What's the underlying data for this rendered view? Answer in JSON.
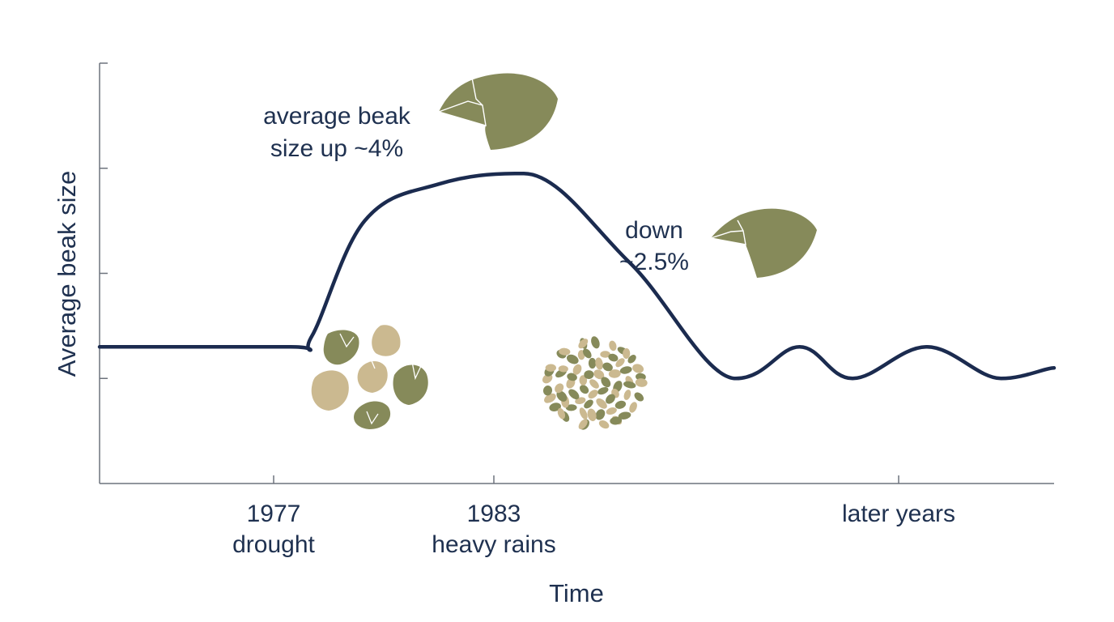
{
  "colors": {
    "line": "#1b2b4f",
    "axis": "#6d737d",
    "text": "#1f3150",
    "olive": "#868a5a",
    "tan": "#cbb990"
  },
  "chart_data": {
    "type": "line",
    "xlabel": "Time",
    "ylabel": "Average beak size",
    "x_ticks": [
      {
        "line1": "1977",
        "line2": "drought"
      },
      {
        "line1": "1983",
        "line2": "heavy rains"
      },
      {
        "line1": "later years",
        "line2": ""
      }
    ],
    "y_ticks": 4,
    "grid": false,
    "series": [
      {
        "x": [
          0,
          0.9,
          1.0,
          1.25,
          1.6,
          2.0,
          2.5,
          3.0,
          3.3,
          3.55,
          3.9,
          4.25,
          4.5
        ],
        "values": [
          1.3,
          1.3,
          1.4,
          2.5,
          2.85,
          2.95,
          2.1,
          1.0,
          1.3,
          1.0,
          1.3,
          1.0,
          1.1
        ]
      }
    ],
    "annotations": {
      "increase": {
        "line1": "average beak",
        "line2": "size up ~4%"
      },
      "decrease": {
        "line1": "down",
        "line2": "~2.5%"
      }
    },
    "icons": [
      "finch-large-beak-icon",
      "finch-small-beak-icon",
      "large-seeds-icon",
      "small-seeds-icon"
    ]
  }
}
